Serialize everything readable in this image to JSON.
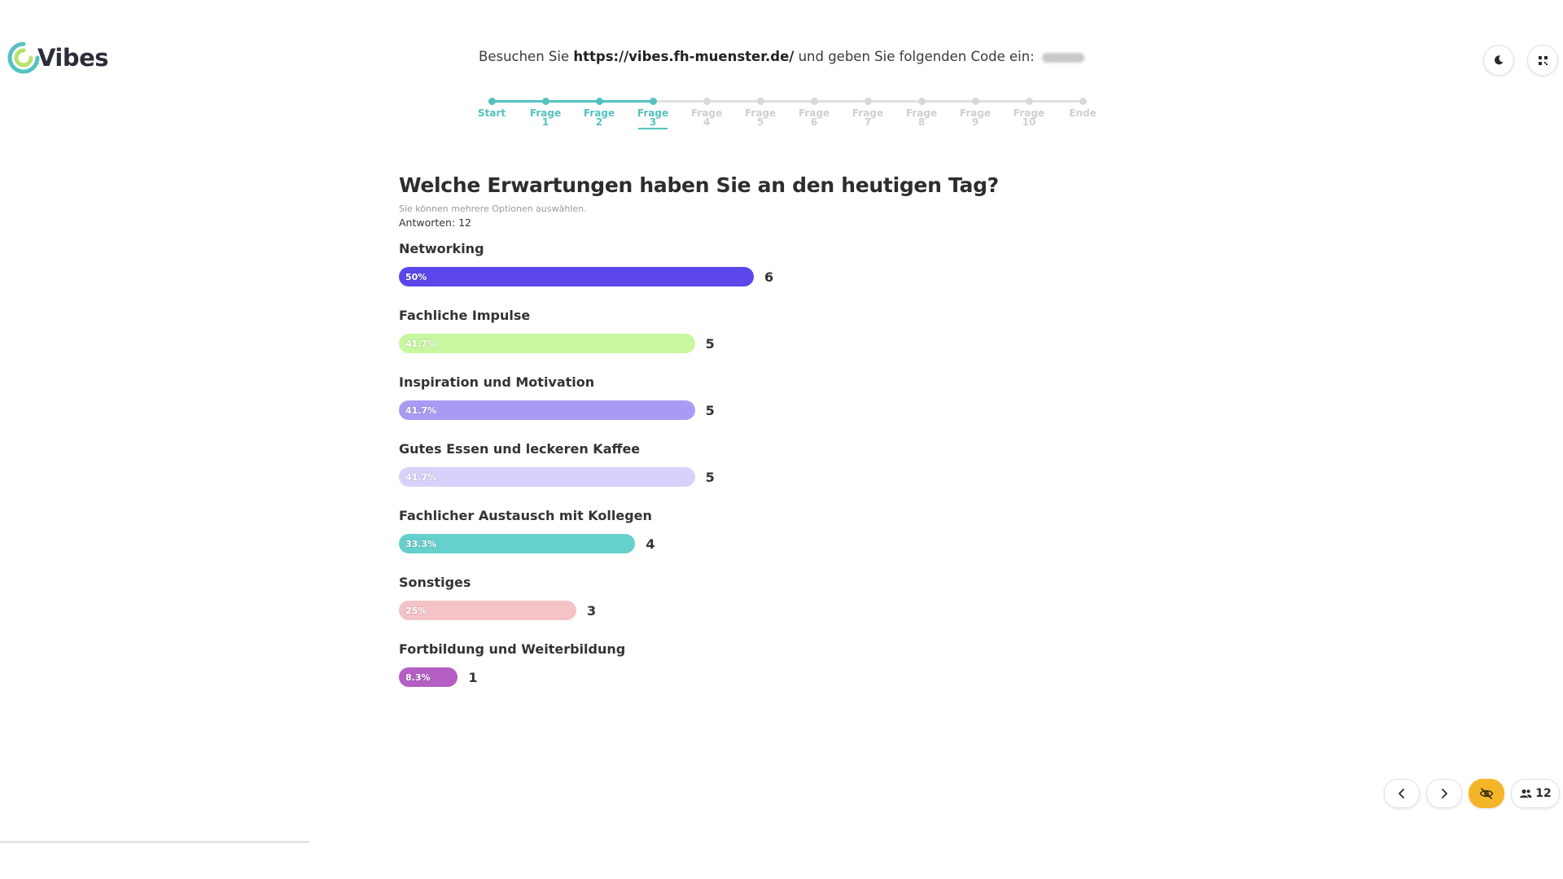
{
  "brand": {
    "name": "Vibes",
    "colors": {
      "teal": "#54c2bf",
      "green": "#b7e36a"
    }
  },
  "instruction": {
    "prefix": "Besuchen Sie",
    "url": "https://vibes.fh-muenster.de/",
    "suffix": "und geben Sie folgenden Code ein:"
  },
  "toolbar": {
    "theme_icon": "moon-icon",
    "qr_icon": "qr-code-icon"
  },
  "stepper": {
    "current_index": 3,
    "steps": [
      {
        "label": "Start",
        "num": ""
      },
      {
        "label": "Frage",
        "num": "1"
      },
      {
        "label": "Frage",
        "num": "2"
      },
      {
        "label": "Frage",
        "num": "3"
      },
      {
        "label": "Frage",
        "num": "4"
      },
      {
        "label": "Frage",
        "num": "5"
      },
      {
        "label": "Frage",
        "num": "6"
      },
      {
        "label": "Frage",
        "num": "7"
      },
      {
        "label": "Frage",
        "num": "8"
      },
      {
        "label": "Frage",
        "num": "9"
      },
      {
        "label": "Frage",
        "num": "10"
      },
      {
        "label": "Ende",
        "num": ""
      }
    ]
  },
  "question": {
    "title": "Welche Erwartungen haben Sie an den heutigen Tag?",
    "hint": "Sie können mehrere Optionen auswählen.",
    "answers": "Antworten: 12"
  },
  "chart_data": {
    "type": "bar",
    "orientation": "horizontal",
    "max_percent": 50,
    "categories": [
      "Networking",
      "Fachliche Impulse",
      "Inspiration und Motivation",
      "Gutes Essen und leckeren Kaffee",
      "Fachlicher Austausch mit Kollegen",
      "Sonstiges",
      "Fortbildung und Weiterbildung"
    ],
    "percent_labels": [
      "50%",
      "41.7%",
      "41.7%",
      "41.7%",
      "33.3%",
      "25%",
      "8.3%"
    ],
    "percent_values": [
      50,
      41.7,
      41.7,
      41.7,
      33.3,
      25,
      8.3
    ],
    "counts": [
      6,
      5,
      5,
      5,
      4,
      3,
      1
    ],
    "colors": [
      "#5b47ea",
      "#c9f7a0",
      "#a99bf4",
      "#d8d1fb",
      "#66d0cd",
      "#f4c3c6",
      "#b55fc4"
    ]
  },
  "footer": {
    "participants": "12",
    "prev_icon": "chevron-left-icon",
    "next_icon": "chevron-right-icon",
    "hide_icon": "eye-off-icon",
    "users_icon": "users-icon",
    "hide_color": "#f4b528"
  }
}
